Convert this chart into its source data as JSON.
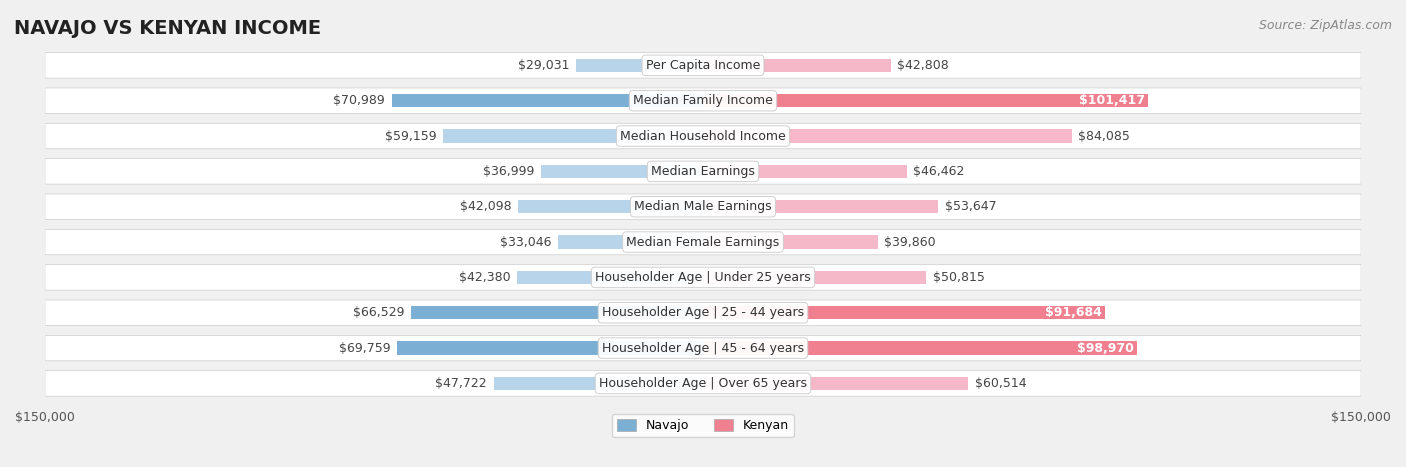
{
  "title": "NAVAJO VS KENYAN INCOME",
  "source": "Source: ZipAtlas.com",
  "categories": [
    "Per Capita Income",
    "Median Family Income",
    "Median Household Income",
    "Median Earnings",
    "Median Male Earnings",
    "Median Female Earnings",
    "Householder Age | Under 25 years",
    "Householder Age | 25 - 44 years",
    "Householder Age | 45 - 64 years",
    "Householder Age | Over 65 years"
  ],
  "navajo_values": [
    29031,
    70989,
    59159,
    36999,
    42098,
    33046,
    42380,
    66529,
    69759,
    47722
  ],
  "kenyan_values": [
    42808,
    101417,
    84085,
    46462,
    53647,
    39860,
    50815,
    91684,
    98970,
    60514
  ],
  "navajo_labels": [
    "$29,031",
    "$70,989",
    "$59,159",
    "$36,999",
    "$42,098",
    "$33,046",
    "$42,380",
    "$66,529",
    "$69,759",
    "$47,722"
  ],
  "kenyan_labels": [
    "$42,808",
    "$101,417",
    "$84,085",
    "$46,462",
    "$53,647",
    "$39,860",
    "$50,815",
    "$91,684",
    "$98,970",
    "$60,514"
  ],
  "navajo_color": "#7bafd4",
  "kenyan_color": "#f08090",
  "navajo_color_light": "#b8d4ea",
  "kenyan_color_light": "#f4b8c8",
  "navajo_highlight": [
    false,
    false,
    false,
    false,
    false,
    false,
    false,
    false,
    false,
    false
  ],
  "kenyan_highlight": [
    false,
    true,
    false,
    false,
    false,
    false,
    false,
    true,
    true,
    false
  ],
  "max_value": 150000,
  "legend_navajo": "Navajo",
  "legend_kenyan": "Kenyan",
  "background_color": "#f0f0f0",
  "row_bg_color": "#f8f8f8",
  "title_fontsize": 14,
  "label_fontsize": 9,
  "source_fontsize": 9
}
